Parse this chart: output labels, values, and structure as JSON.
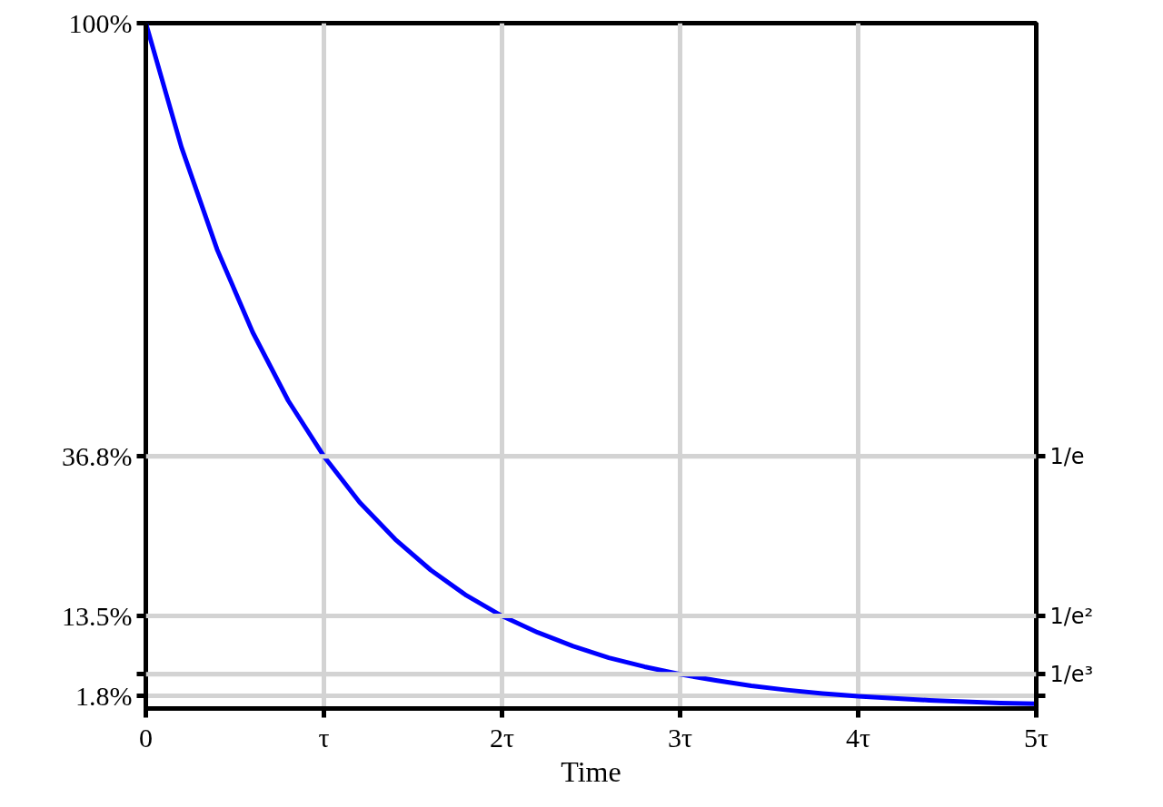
{
  "chart_data": {
    "type": "line",
    "xlabel": "Time",
    "x": [
      0,
      0.2,
      0.4,
      0.6,
      0.8,
      1,
      1.2,
      1.4,
      1.6,
      1.8,
      2,
      2.2,
      2.4,
      2.6,
      2.8,
      3,
      3.2,
      3.4,
      3.6,
      3.8,
      4,
      4.2,
      4.4,
      4.6,
      4.8,
      5
    ],
    "series": [
      {
        "color": "#0000ff",
        "values": [
          100,
          81.9,
          67.0,
          54.9,
          44.9,
          36.8,
          30.1,
          24.7,
          20.2,
          16.5,
          13.5,
          11.1,
          9.1,
          7.4,
          6.1,
          5.0,
          4.1,
          3.3,
          2.7,
          2.2,
          1.8,
          1.5,
          1.2,
          1.0,
          0.8,
          0.7
        ]
      }
    ],
    "xlim": [
      0,
      5
    ],
    "xticks": [
      0,
      {
        "value": 1,
        "label": "τ"
      },
      {
        "value": 2,
        "label": "2τ"
      },
      {
        "value": 3,
        "label": "3τ"
      },
      {
        "value": 4,
        "label": "4τ"
      },
      {
        "value": 5,
        "label": "5τ"
      }
    ],
    "ylim": [
      0,
      100
    ],
    "yticks": [
      {
        "value": 100,
        "label": "100%"
      },
      {
        "value": 36.8,
        "label": "36.8%"
      },
      {
        "value": 13.5,
        "label": "13.5%"
      },
      {
        "value": 5.0,
        "label": null
      },
      {
        "value": 1.8,
        "label": "1.8%"
      }
    ],
    "ref_lines": [
      {
        "axis": "y",
        "value": 36.8,
        "label": "1/e"
      },
      {
        "axis": "y",
        "value": 13.5,
        "label": "1/e²"
      },
      {
        "axis": "y",
        "value": 5.0,
        "label": "1/e³"
      }
    ],
    "grid": true,
    "line_style": "solid",
    "marker": "none"
  }
}
